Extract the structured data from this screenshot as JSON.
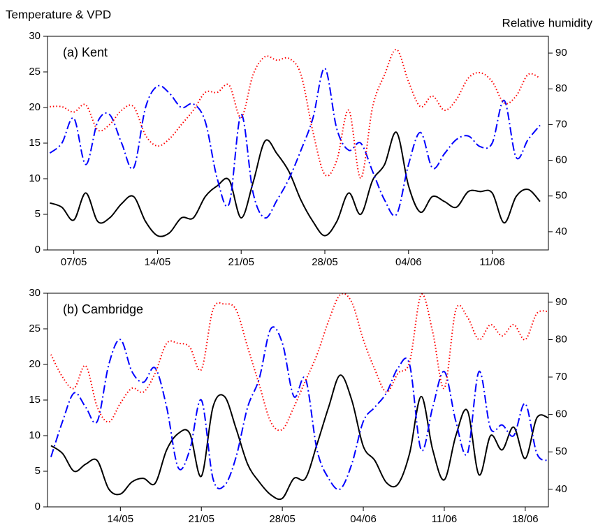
{
  "chart_data": [
    {
      "type": "line",
      "title": "(a) Kent",
      "ylabel": "Temperature & VPD",
      "y2label": "Relative humidity",
      "x": [
        5,
        6,
        7,
        8,
        9,
        10,
        11,
        12,
        13,
        14,
        15,
        16,
        17,
        18,
        19,
        20,
        21,
        22,
        23,
        24,
        25,
        26,
        27,
        28,
        29,
        30,
        31,
        32,
        33,
        34,
        35,
        36,
        37,
        38,
        39,
        40,
        41,
        42,
        43,
        44,
        45,
        46
      ],
      "xlim": [
        4.8,
        46.7
      ],
      "xticks": [
        {
          "value": 7,
          "label": "07/05"
        },
        {
          "value": 14,
          "label": "14/05"
        },
        {
          "value": 21,
          "label": "21/05"
        },
        {
          "value": 28,
          "label": "28/05"
        },
        {
          "value": 35,
          "label": "04/06"
        },
        {
          "value": 42,
          "label": "11/06"
        }
      ],
      "ylim": [
        0,
        30
      ],
      "yticks": [
        0,
        5,
        10,
        15,
        20,
        25,
        30
      ],
      "y2lim": [
        34.9,
        94.7
      ],
      "y2ticks": [
        40,
        50,
        60,
        70,
        80,
        90
      ],
      "series": [
        {
          "color": "#000000",
          "dash": "solid",
          "values": [
            6.6,
            6,
            4.2,
            8,
            4,
            4.5,
            6.5,
            7.5,
            4,
            2,
            2.4,
            4.5,
            4.5,
            7.5,
            9,
            9.8,
            4.5,
            9.5,
            15.3,
            13.5,
            11,
            7,
            4,
            2,
            4,
            8,
            5,
            9.8,
            12,
            16.5,
            9,
            5.3,
            7.5,
            6.8,
            6,
            8.2,
            8.2,
            8,
            3.8,
            7.5,
            8.5,
            6.8
          ]
        },
        {
          "color": "#0000ff",
          "dash": "dashdot",
          "values": [
            13.6,
            15,
            18.5,
            12,
            18,
            19,
            15,
            11.5,
            20,
            23,
            22,
            20,
            20.5,
            18,
            10,
            6.5,
            19,
            8,
            4.5,
            7,
            10,
            14,
            18.5,
            25.5,
            17,
            14,
            15,
            11,
            7,
            5,
            12,
            16.5,
            11.5,
            13.5,
            15.5,
            16,
            14.5,
            15,
            21,
            13,
            15.5,
            17.5
          ]
        },
        {
          "color": "#ff0000",
          "dash": "dotted",
          "axis": "y2",
          "values": [
            75,
            75,
            73.5,
            75.5,
            68.5,
            70,
            74,
            75,
            67,
            64,
            66,
            70,
            74,
            79,
            79,
            81,
            72,
            84,
            89,
            88,
            88.5,
            84,
            68,
            56,
            60,
            74,
            55,
            75,
            84,
            91,
            82,
            75,
            78,
            74,
            77,
            83,
            84.5,
            82,
            76,
            78,
            84,
            83
          ]
        }
      ]
    },
    {
      "type": "line",
      "title": "(b) Cambridge",
      "x": [
        8,
        9,
        10,
        11,
        12,
        13,
        14,
        15,
        16,
        17,
        18,
        19,
        20,
        21,
        22,
        23,
        24,
        25,
        26,
        27,
        28,
        29,
        30,
        31,
        32,
        33,
        34,
        35,
        36,
        37,
        38,
        39,
        40,
        41,
        42,
        43,
        44,
        45,
        46,
        47,
        48,
        49,
        50,
        51
      ],
      "xlim": [
        7.7,
        51
      ],
      "xticks": [
        {
          "value": 14,
          "label": "14/05"
        },
        {
          "value": 21,
          "label": "21/05"
        },
        {
          "value": 28,
          "label": "28/05"
        },
        {
          "value": 35,
          "label": "04/06"
        },
        {
          "value": 42,
          "label": "11/06"
        },
        {
          "value": 49,
          "label": "18/06"
        }
      ],
      "ylim": [
        0,
        30
      ],
      "yticks": [
        0,
        5,
        10,
        15,
        20,
        25,
        30
      ],
      "y2lim": [
        35.3,
        92.4
      ],
      "y2ticks": [
        40,
        50,
        60,
        70,
        80,
        90
      ],
      "series": [
        {
          "color": "#000000",
          "dash": "solid",
          "values": [
            8.6,
            7.5,
            5,
            6,
            6.5,
            2.5,
            1.8,
            3.5,
            4,
            3.3,
            8,
            10.3,
            10.3,
            4.3,
            14,
            15.5,
            11,
            6,
            3.5,
            1.7,
            1.2,
            4,
            4,
            8.8,
            14,
            18.5,
            15,
            8.5,
            6.5,
            3.4,
            3.2,
            7.5,
            15.5,
            8,
            3.8,
            10,
            13.5,
            4.5,
            10,
            8,
            11.2,
            6.8,
            12.5,
            12.5
          ]
        },
        {
          "color": "#0000ff",
          "dash": "dashdot",
          "values": [
            7,
            12,
            16,
            14,
            12,
            20,
            23.5,
            19,
            17.5,
            19.5,
            14,
            5.5,
            8,
            15,
            4,
            3,
            7,
            14,
            18,
            25,
            23,
            15.5,
            18,
            8,
            4,
            2.5,
            6,
            12,
            14,
            16,
            19.5,
            20,
            8,
            14,
            19,
            12,
            7.5,
            19,
            11,
            11.5,
            10,
            14.5,
            7.5,
            6.5
          ]
        },
        {
          "color": "#ff0000",
          "dash": "dotted",
          "axis": "y2",
          "values": [
            76,
            70,
            67,
            73,
            62,
            58,
            63,
            67,
            66,
            71,
            79,
            79,
            78,
            72,
            88,
            89.5,
            88,
            78,
            68,
            58,
            56,
            62,
            69,
            76,
            85,
            92,
            90,
            80,
            72,
            66,
            71,
            74,
            92,
            82,
            67,
            88,
            86,
            80,
            84,
            81,
            84,
            80,
            87,
            87.5
          ]
        }
      ]
    }
  ]
}
